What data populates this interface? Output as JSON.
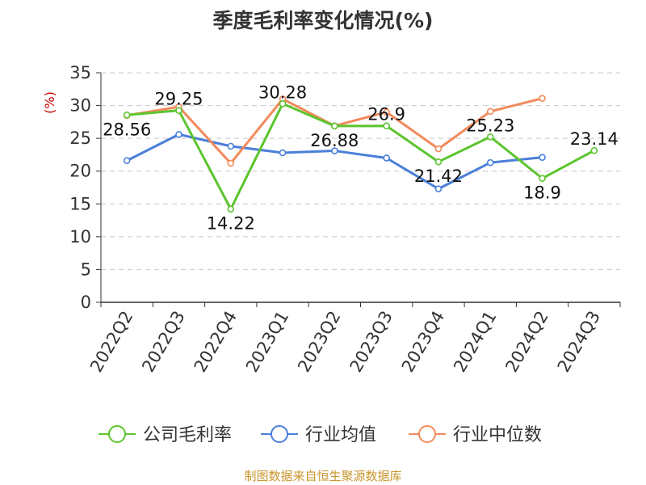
{
  "chart_data": {
    "type": "line",
    "title": "季度毛利率变化情况(%)",
    "ylabel": "(%)",
    "xlabel": "",
    "ylim": [
      0,
      35
    ],
    "y_ticks": [
      0,
      5,
      10,
      15,
      20,
      25,
      30,
      35
    ],
    "grid": true,
    "legend_position": "bottom",
    "categories": [
      "2022Q2",
      "2022Q3",
      "2022Q4",
      "2023Q1",
      "2023Q2",
      "2023Q3",
      "2023Q4",
      "2024Q1",
      "2024Q2",
      "2024Q3"
    ],
    "series": [
      {
        "name": "公司毛利率",
        "color": "#5cc42e",
        "values": [
          28.56,
          29.25,
          14.22,
          30.28,
          26.88,
          26.9,
          21.42,
          25.23,
          18.9,
          23.14
        ],
        "labels_shown": true
      },
      {
        "name": "行业均值",
        "color": "#4a7fd9",
        "values": [
          21.6,
          25.6,
          23.8,
          22.8,
          23.1,
          22.0,
          17.3,
          21.3,
          22.1,
          null
        ],
        "labels_shown": false
      },
      {
        "name": "行业中位数",
        "color": "#f28a5b",
        "values": [
          28.5,
          29.8,
          21.2,
          31.0,
          26.9,
          29.0,
          23.4,
          29.1,
          31.1,
          null
        ],
        "labels_shown": false
      }
    ]
  },
  "footer": {
    "source": "制图数据来自恒生聚源数据库"
  }
}
